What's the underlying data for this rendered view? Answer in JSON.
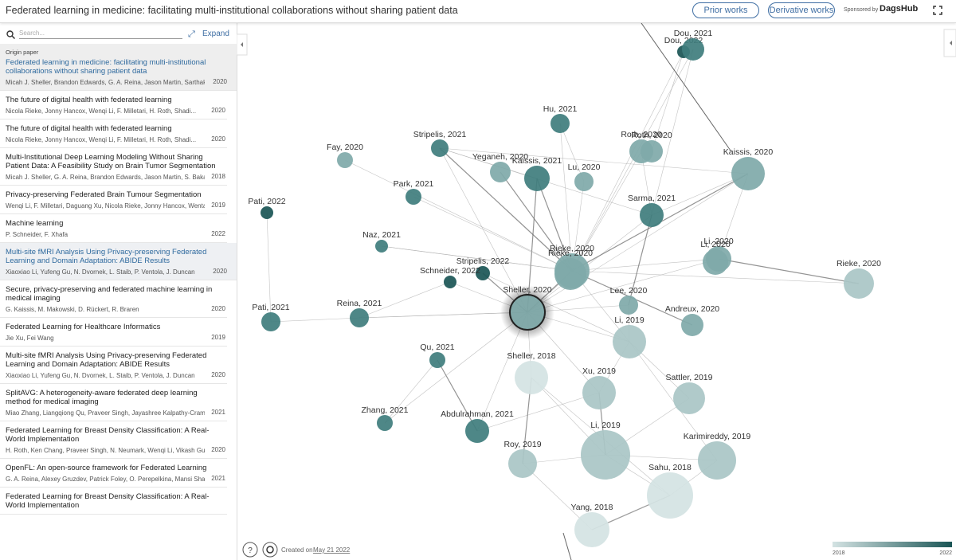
{
  "header": {
    "title": "Federated learning in medicine: facilitating multi-institutional collaborations without sharing patient data",
    "buttons": [
      "Prior works",
      "Derivative works"
    ],
    "sponsor": "Sponsored by",
    "sponsor_name": "DagsHub"
  },
  "sidebar": {
    "search_placeholder": "Search...",
    "expand": "Expand",
    "origin_label": "Origin paper",
    "origin": {
      "title": "Federated learning in medicine: facilitating multi-institutional collaborations without sharing patient data",
      "authors": "Micah J. Sheller, Brandon Edwards, G. A. Reina, Jason Martin, Sarthak Pat...",
      "year": 2020
    },
    "papers": [
      {
        "title": "The future of digital health with federated learning",
        "authors": "Nicola Rieke, Jonny Hancox, Wenqi Li, F. Milletari, H. Roth, Shadi...",
        "year": 2020
      },
      {
        "title": "The future of digital health with federated learning",
        "authors": "Nicola Rieke, Jonny Hancox, Wenqi Li, F. Milletari, H. Roth, Shadi...",
        "year": 2020
      },
      {
        "title": "Multi-Institutional Deep Learning Modeling Without Sharing Patient Data: A Feasibility Study on Brain Tumor Segmentation",
        "authors": "Micah J. Sheller, G. A. Reina, Brandon Edwards, Jason Martin, S. Bakas",
        "year": 2018
      },
      {
        "title": "Privacy-preserving Federated Brain Tumour Segmentation",
        "authors": "Wenqi Li, F. Milletari, Daguang Xu, Nicola Rieke, Jonny Hancox, Wentao Zh...",
        "year": 2019
      },
      {
        "title": "Machine learning",
        "authors": "P. Schneider, F. Xhafa",
        "year": 2022
      },
      {
        "title": "Multi-site fMRI Analysis Using Privacy-preserving Federated Learning and Domain Adaptation: ABIDE Results",
        "authors": "Xiaoxiao Li, Yufeng Gu, N. Dvornek, L. Staib, P. Ventola, J. Duncan",
        "year": 2020
      },
      {
        "title": "Secure, privacy-preserving and federated machine learning in medical imaging",
        "authors": "G. Kaissis, M. Makowski, D. Rückert, R. Braren",
        "year": 2020
      },
      {
        "title": "Federated Learning for Healthcare Informatics",
        "authors": "Jie Xu, Fei Wang",
        "year": 2019
      },
      {
        "title": "Multi-site fMRI Analysis Using Privacy-preserving Federated Learning and Domain Adaptation: ABIDE Results",
        "authors": "Xiaoxiao Li, Yufeng Gu, N. Dvornek, L. Staib, P. Ventola, J. Duncan",
        "year": 2020
      },
      {
        "title": "SplitAVG: A heterogeneity-aware federated deep learning method for medical imaging",
        "authors": "Miao Zhang, Liangqiong Qu, Praveer Singh, Jayashree Kalpathy-Cramer, D...",
        "year": 2021
      },
      {
        "title": "Federated Learning for Breast Density Classification: A Real-World Implementation",
        "authors": "H. Roth, Ken Chang, Praveer Singh, N. Neumark, Wenqi Li, Vikash Gupta,...",
        "year": 2020
      },
      {
        "title": "OpenFL: An open-source framework for Federated Learning",
        "authors": "G. A. Reina, Alexey Gruzdev, Patrick Foley, O. Perepelkina, Mansi Sharma,...",
        "year": 2021
      },
      {
        "title": "Federated Learning for Breast Density Classification: A Real-World Implementation"
      }
    ]
  },
  "graph": {
    "nodes": [
      "Dou, 2022",
      "Dou, 2021",
      "Hu, 2021",
      "Stripelis, 2021",
      "Fay, 2020",
      "Yeganeh, 2020",
      "Kaissis, 2021",
      "Lu, 2020",
      "Roth, 2020",
      "Roth, 2020",
      "Kaissis, 2020",
      "Park, 2021",
      "Sarma, 2021",
      "Pati, 2022",
      "Naz, 2021",
      "Li, 2020",
      "Li, 2020",
      "Rieke, 2020",
      "Rieke, 2020",
      "Stripelis, 2022",
      "Schneider, 2022",
      "Rieke, 2020",
      "Lee, 2020",
      "Sheller, 2020",
      "Pati, 2021",
      "Reina, 2021",
      "Andreux, 2020",
      "Li, 2019",
      "Qu, 2021",
      "Sheller, 2018",
      "Xu, 2019",
      "Sattler, 2019",
      "Zhang, 2021",
      "Abdulrahman, 2021",
      "Li, 2019",
      "Roy, 2019",
      "Karimireddy, 2019",
      "Sahu, 2018",
      "Yang, 2018"
    ],
    "created_label": "Created on",
    "created_date": "May 21 2022",
    "help": "?",
    "legend": {
      "min": "2018",
      "max": "2022"
    }
  }
}
